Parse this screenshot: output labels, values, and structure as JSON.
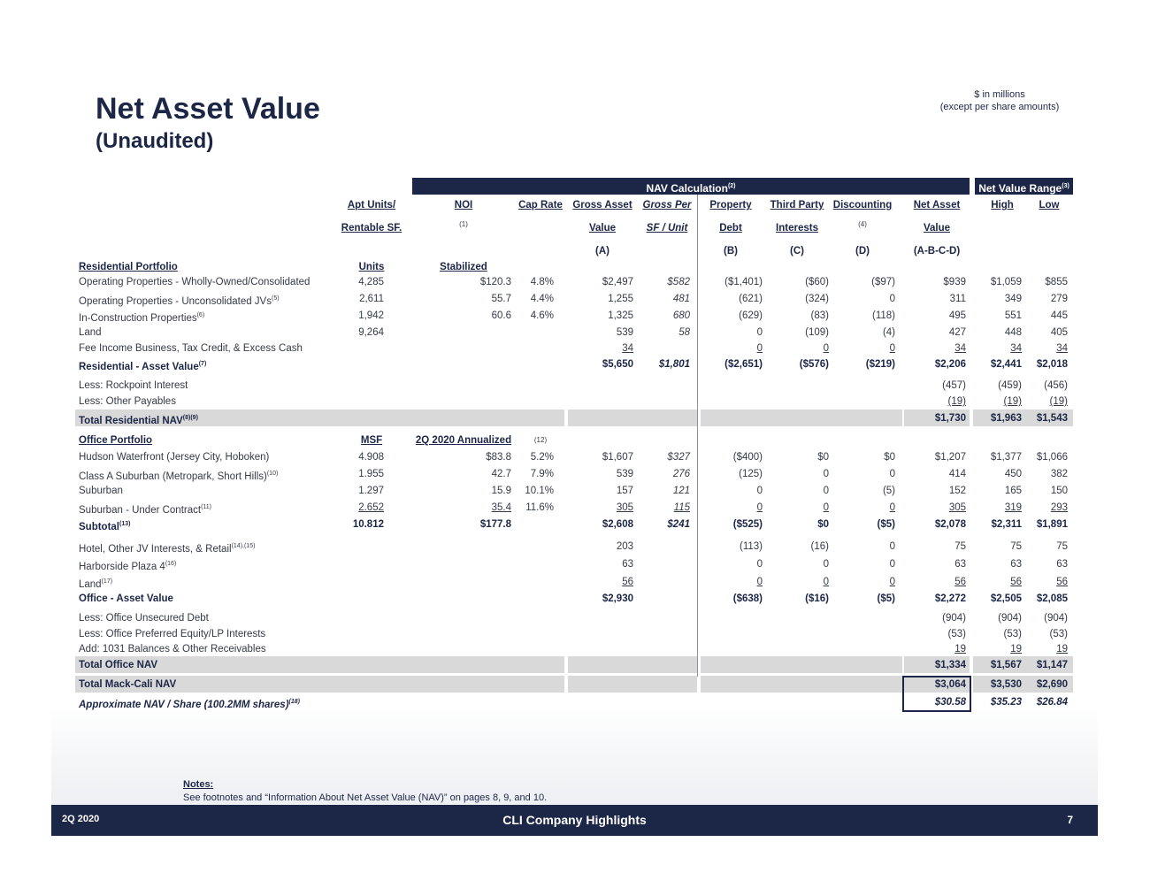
{
  "header": {
    "title": "Net Asset Value",
    "subtitle": "(Unaudited)",
    "units_note_1": "$ in millions",
    "units_note_2": "(except per share amounts)"
  },
  "banners": {
    "nav_calc": "NAV Calculation",
    "nav_calc_sup": "(2)",
    "range": "Net Value Range",
    "range_sup": "(3)"
  },
  "columns": [
    {
      "l1": "Apt Units/",
      "l2": "Rentable SF.",
      "l3": ""
    },
    {
      "l1": "NOI",
      "l2": "(1)",
      "l3": ""
    },
    {
      "l1": "Cap Rate",
      "l2": "",
      "l3": ""
    },
    {
      "l1": "Gross Asset",
      "l2": "Value",
      "l3": "(A)"
    },
    {
      "l1": "Gross Per",
      "l2": "SF / Unit",
      "l3": ""
    },
    {
      "l1": "Property",
      "l2": "Debt",
      "l3": "(B)"
    },
    {
      "l1": "Third Party",
      "l2": "Interests",
      "l3": "(C)"
    },
    {
      "l1": "Discounting",
      "l2": "(4)",
      "l3": "(D)"
    },
    {
      "l1": "Net Asset",
      "l2": "Value",
      "l3": "(A-B-C-D)"
    },
    {
      "l1": "High",
      "l2": "",
      "l3": ""
    },
    {
      "l1": "Low",
      "l2": "",
      "l3": ""
    }
  ],
  "rows": [
    {
      "label": "Residential Portfolio",
      "style": "section",
      "cells": [
        "Units",
        "Stabilized",
        "",
        "",
        "",
        "",
        "",
        "",
        "",
        "",
        ""
      ]
    },
    {
      "label": "Operating Properties - Wholly-Owned/Consolidated",
      "cells": [
        "4,285",
        "$120.3",
        "4.8%",
        "$2,497",
        "$582",
        "($1,401)",
        "($60)",
        "($97)",
        "$939",
        "$1,059",
        "$855"
      ]
    },
    {
      "label": "Operating Properties - Unconsolidated JVs",
      "sup": "(5)",
      "cells": [
        "2,611",
        "55.7",
        "4.4%",
        "1,255",
        "481",
        "(621)",
        "(324)",
        "0",
        "311",
        "349",
        "279"
      ]
    },
    {
      "label": "In-Construction Properties",
      "sup": "(6)",
      "cells": [
        "1,942",
        "60.6",
        "4.6%",
        "1,325",
        "680",
        "(629)",
        "(83)",
        "(118)",
        "495",
        "551",
        "445"
      ]
    },
    {
      "label": "Land",
      "cells": [
        "9,264",
        "",
        "",
        "539",
        "58",
        "0",
        "(109)",
        "(4)",
        "427",
        "448",
        "405"
      ]
    },
    {
      "label": "Fee Income Business, Tax Credit, & Excess Cash",
      "ul": true,
      "cells": [
        "",
        "",
        "",
        "34",
        "",
        "0",
        "0",
        "0",
        "34",
        "34",
        "34"
      ]
    },
    {
      "label": "Residential - Asset Value",
      "sup": "(7)",
      "style": "bold",
      "cells": [
        "",
        "",
        "",
        "$5,650",
        "$1,801",
        "($2,651)",
        "($576)",
        "($219)",
        "$2,206",
        "$2,441",
        "$2,018"
      ]
    },
    {
      "label": "Less:  Rockpoint Interest",
      "cells": [
        "",
        "",
        "",
        "",
        "",
        "",
        "",
        "",
        "(457)",
        "(459)",
        "(456)"
      ]
    },
    {
      "label": "Less: Other Payables",
      "ul": true,
      "cells": [
        "",
        "",
        "",
        "",
        "",
        "",
        "",
        "",
        "(19)",
        "(19)",
        "(19)"
      ]
    },
    {
      "label": "Total Residential NAV",
      "sup": "(8)(9)",
      "style": "total",
      "cells": [
        "",
        "",
        "",
        "",
        "",
        "",
        "",
        "",
        "$1,730",
        "$1,963",
        "$1,543"
      ]
    },
    {
      "label": "Office Portfolio",
      "style": "section",
      "cells": [
        "MSF",
        "2Q 2020 Annualized",
        "(12)",
        "",
        "",
        "",
        "",
        "",
        "",
        "",
        ""
      ]
    },
    {
      "label": "Hudson Waterfront (Jersey City, Hoboken)",
      "cells": [
        "4.908",
        "$83.8",
        "5.2%",
        "$1,607",
        "$327",
        "($400)",
        "$0",
        "$0",
        "$1,207",
        "$1,377",
        "$1,066"
      ]
    },
    {
      "label": "Class A Suburban (Metropark, Short Hills)",
      "sup": "(10)",
      "cells": [
        "1.955",
        "42.7",
        "7.9%",
        "539",
        "276",
        "(125)",
        "0",
        "0",
        "414",
        "450",
        "382"
      ]
    },
    {
      "label": "Suburban",
      "cells": [
        "1.297",
        "15.9",
        "10.1%",
        "157",
        "121",
        "0",
        "0",
        "(5)",
        "152",
        "165",
        "150"
      ]
    },
    {
      "label": "Suburban - Under Contract",
      "sup": "(11)",
      "ul": true,
      "cells": [
        "2.652",
        "35.4",
        "11.6%",
        "305",
        "115",
        "0",
        "0",
        "0",
        "305",
        "319",
        "293"
      ]
    },
    {
      "label": "Subtotal",
      "sup": "(13)",
      "style": "bold",
      "cells": [
        "10.812",
        "$177.8",
        "",
        "$2,608",
        "$241",
        "($525)",
        "$0",
        "($5)",
        "$2,078",
        "$2,311",
        "$1,891"
      ]
    },
    {
      "label": "Hotel, Other JV Interests, & Retail",
      "sup": "(14),(15)",
      "cells": [
        "",
        "",
        "",
        "203",
        "",
        "(113)",
        "(16)",
        "0",
        "75",
        "75",
        "75"
      ]
    },
    {
      "label": "Harborside Plaza 4",
      "sup": "(16)",
      "cells": [
        "",
        "",
        "",
        "63",
        "",
        "0",
        "0",
        "0",
        "63",
        "63",
        "63"
      ]
    },
    {
      "label": "Land",
      "sup": "(17)",
      "ul": true,
      "cells": [
        "",
        "",
        "",
        "56",
        "",
        "0",
        "0",
        "0",
        "56",
        "56",
        "56"
      ]
    },
    {
      "label": "Office - Asset Value",
      "style": "bold",
      "cells": [
        "",
        "",
        "",
        "$2,930",
        "",
        "($638)",
        "($16)",
        "($5)",
        "$2,272",
        "$2,505",
        "$2,085"
      ]
    },
    {
      "label": "Less:  Office Unsecured Debt",
      "cells": [
        "",
        "",
        "",
        "",
        "",
        "",
        "",
        "",
        "(904)",
        "(904)",
        "(904)"
      ]
    },
    {
      "label": "Less:  Office Preferred Equity/LP Interests",
      "cells": [
        "",
        "",
        "",
        "",
        "",
        "",
        "",
        "",
        "(53)",
        "(53)",
        "(53)"
      ]
    },
    {
      "label": "Add: 1031 Balances & Other Receivables",
      "ul": true,
      "cells": [
        "",
        "",
        "",
        "",
        "",
        "",
        "",
        "",
        "19",
        "19",
        "19"
      ]
    },
    {
      "label": "Total Office NAV",
      "style": "total",
      "cells": [
        "",
        "",
        "",
        "",
        "",
        "",
        "",
        "",
        "$1,334",
        "$1,567",
        "$1,147"
      ]
    },
    {
      "label": "Total Mack-Cali NAV",
      "style": "total",
      "cells": [
        "",
        "",
        "",
        "",
        "",
        "",
        "",
        "",
        "$3,064",
        "$3,530",
        "$2,690"
      ]
    },
    {
      "label": "Approximate NAV / Share (100.2MM shares)",
      "sup": "(18)",
      "style": "pershare",
      "cells": [
        "",
        "",
        "",
        "",
        "",
        "",
        "",
        "",
        "$30.58",
        "$35.23",
        "$26.84"
      ]
    }
  ],
  "notes": {
    "heading": "Notes:",
    "text": "See footnotes and “Information About Net Asset Value (NAV)” on pages 8, 9, and 10."
  },
  "footer": {
    "left": "2Q 2020",
    "center": "CLI Company Highlights",
    "page": "7"
  },
  "colors": {
    "navy": "#1c2647",
    "band": "#d9d9d9"
  }
}
